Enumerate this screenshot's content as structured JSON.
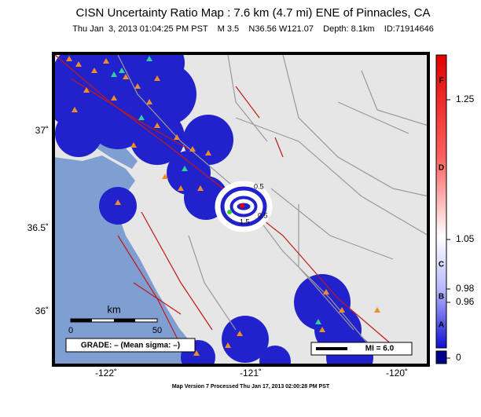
{
  "header": {
    "title": "CISN Uncertainty Ratio Map : 7.6 km (4.7 mi) ENE of Pinnacles, CA",
    "subtitle": "Thu Jan  3, 2013 01:04:25 PM PST    M 3.5    N36.56 W121.07    Depth: 8.1km    ID:71914646"
  },
  "map": {
    "lat_labels": [
      "37˚",
      "36.5˚",
      "36˚"
    ],
    "lon_labels": [
      "-122˚",
      "-121˚",
      "-120˚"
    ],
    "contour_labels": [
      "0.5",
      "0.5",
      "1.5"
    ],
    "scale_bar": {
      "unit": "km",
      "start": "0",
      "end": "50"
    },
    "grade": "GRADE: – (Mean sigma: –)",
    "mi_legend": "MI = 6.0"
  },
  "colorbar": {
    "grades": [
      "F",
      "D",
      "C",
      "B",
      "A"
    ],
    "ticks": [
      "1.25",
      "1.05",
      "0.98",
      "0.96",
      "0"
    ]
  },
  "footer": "Map Version 7 Processed Thu Jan 17, 2013 02:00:28 PM PST"
}
